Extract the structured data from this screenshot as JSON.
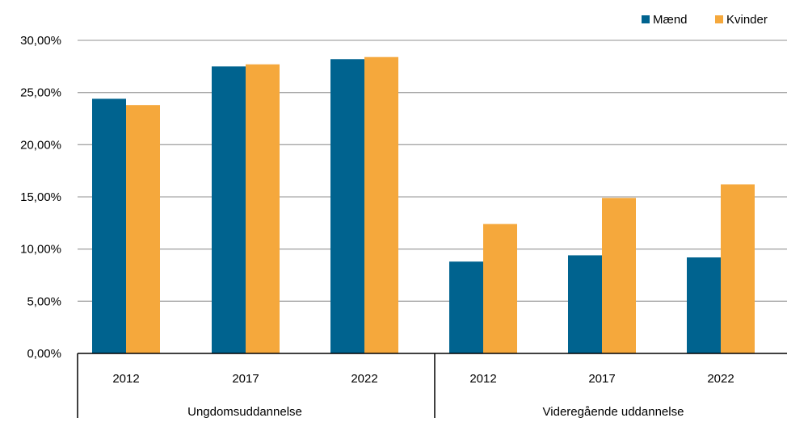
{
  "chart_data": {
    "type": "bar",
    "groups": [
      {
        "label": "Ungdomsuddannelse",
        "categories": [
          "2012",
          "2017",
          "2022"
        ]
      },
      {
        "label": "Videregående uddannelse",
        "categories": [
          "2012",
          "2017",
          "2022"
        ]
      }
    ],
    "series": [
      {
        "name": "Mænd",
        "color": "#00638F",
        "values": [
          24.4,
          27.5,
          28.2,
          8.8,
          9.4,
          9.2
        ]
      },
      {
        "name": "Kvinder",
        "color": "#F5A83C",
        "values": [
          23.8,
          27.7,
          28.4,
          12.4,
          14.9,
          16.2
        ]
      }
    ],
    "y_ticks": [
      "0,00%",
      "5,00%",
      "10,00%",
      "15,00%",
      "20,00%",
      "25,00%",
      "30,00%"
    ],
    "ylim": [
      0,
      30
    ],
    "y_step": 5,
    "grid": true,
    "legend_position": "top-right",
    "title": "",
    "xlabel": "",
    "ylabel": ""
  }
}
